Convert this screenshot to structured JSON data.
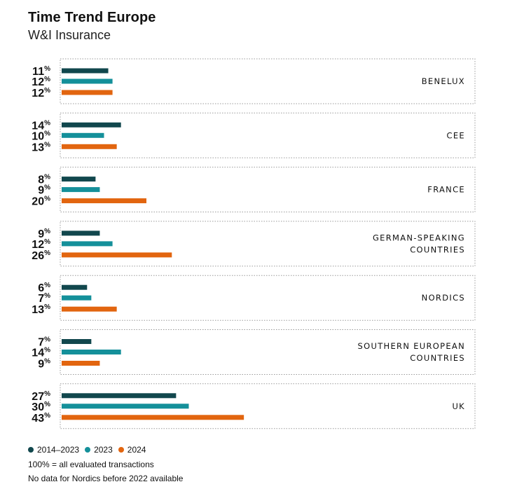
{
  "header": {
    "title": "Time Trend Europe",
    "subtitle": "W&I Insurance"
  },
  "colors": {
    "period_2014_2023": "#11474d",
    "period_2023": "#14909a",
    "period_2024": "#e2650f",
    "panel_border": "#9a9a9a"
  },
  "legend": {
    "items": [
      {
        "label": "2014–2023",
        "color": "#11474d"
      },
      {
        "label": "2023",
        "color": "#14909a"
      },
      {
        "label": "2024",
        "color": "#e2650f"
      }
    ]
  },
  "notes": {
    "line1": "100% = all evaluated transactions",
    "line2": "No data for Nordics before 2022 available"
  },
  "chart_data": {
    "type": "bar",
    "orientation": "horizontal",
    "unit": "%",
    "categories": [
      "BENELUX",
      "CEE",
      "FRANCE",
      "GERMAN-SPEAKING COUNTRIES",
      "NORDICS",
      "SOUTHERN EUROPEAN COUNTRIES",
      "UK"
    ],
    "category_label_lines": [
      [
        "BENELUX"
      ],
      [
        "CEE"
      ],
      [
        "FRANCE"
      ],
      [
        "GERMAN-SPEAKING",
        "COUNTRIES"
      ],
      [
        "NORDICS"
      ],
      [
        "SOUTHERN EUROPEAN",
        "COUNTRIES"
      ],
      [
        "UK"
      ]
    ],
    "series": [
      {
        "name": "2014–2023",
        "values": [
          11,
          14,
          8,
          9,
          6,
          7,
          27
        ]
      },
      {
        "name": "2023",
        "values": [
          12,
          10,
          9,
          12,
          7,
          14,
          30
        ]
      },
      {
        "name": "2024",
        "values": [
          12,
          13,
          20,
          26,
          13,
          9,
          43
        ]
      }
    ],
    "xlim": [
      0,
      100
    ],
    "legend_position": "bottom-left"
  }
}
